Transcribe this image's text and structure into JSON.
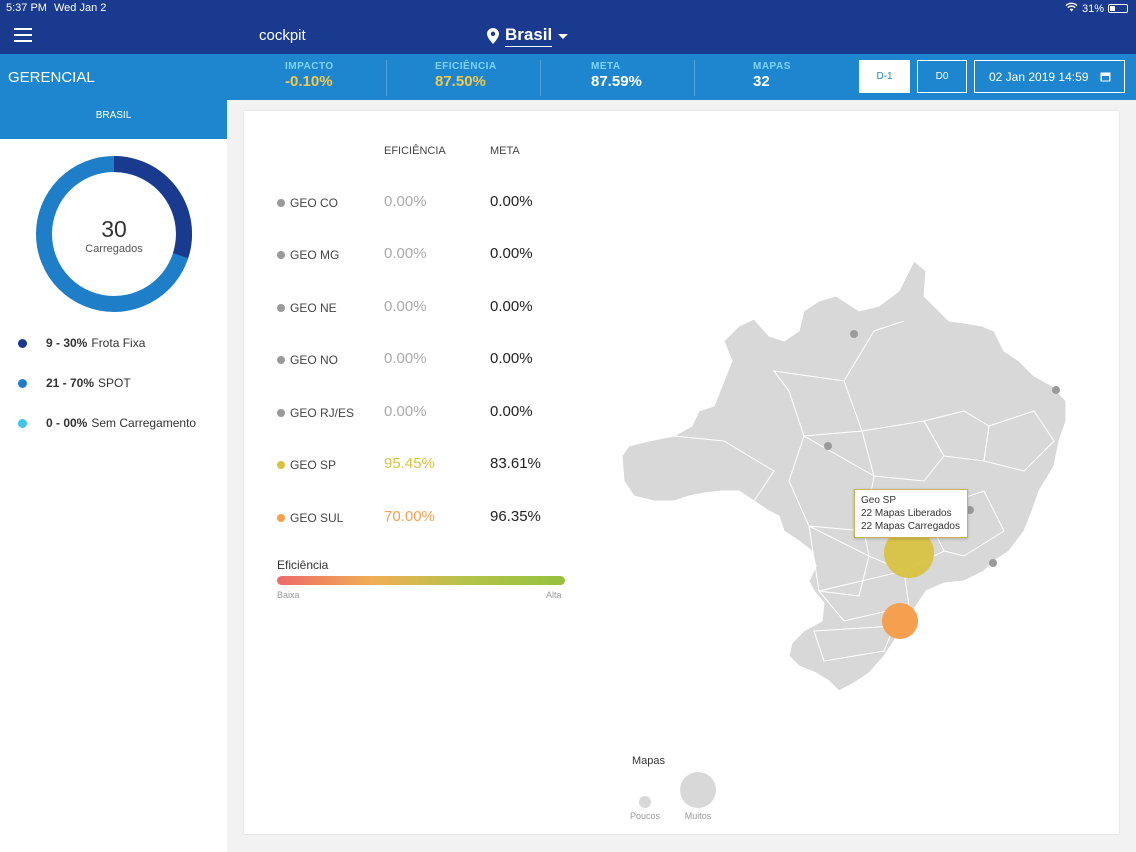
{
  "status": {
    "time": "5:37 PM",
    "date": "Wed Jan 2",
    "battery": "31%"
  },
  "nav": {
    "app_title": "cockpit",
    "region": "Brasil"
  },
  "kpibar": {
    "section": "GERENCIAL",
    "kpis": [
      {
        "label": "IMPACTO",
        "value": "-0.10%",
        "color": "#f2c94c"
      },
      {
        "label": "EFICIÊNCIA",
        "value": "87.50%",
        "color": "#f2c94c"
      },
      {
        "label": "META",
        "value": "87.59%",
        "color": "#ffffff"
      },
      {
        "label": "MAPAS",
        "value": "32",
        "color": "#ffffff"
      }
    ],
    "btn_d1": "D-1",
    "btn_d0": "D0",
    "datetime": "02 Jan 2019 14:59"
  },
  "sidebar": {
    "tab": "BRASIL",
    "donut": {
      "total": "30",
      "label": "Carregados",
      "segments": [
        9,
        21,
        0
      ]
    },
    "legend": [
      {
        "bold": "9 - 30%",
        "text": "Frota Fixa",
        "color": "#1a3a8f"
      },
      {
        "bold": "21 - 70%",
        "text": "SPOT",
        "color": "#1e7ec8"
      },
      {
        "bold": "0 - 00%",
        "text": "Sem Carregamento",
        "color": "#3ec3ea"
      }
    ]
  },
  "table": {
    "col_eff": "EFICIÊNCIA",
    "col_meta": "META",
    "rows": [
      {
        "name": "GEO CO",
        "eff": "0.00%",
        "meta": "0.00%",
        "color": "#9a9a9a",
        "eff_color": "#aaaaaa"
      },
      {
        "name": "GEO MG",
        "eff": "0.00%",
        "meta": "0.00%",
        "color": "#9a9a9a",
        "eff_color": "#aaaaaa"
      },
      {
        "name": "GEO NE",
        "eff": "0.00%",
        "meta": "0.00%",
        "color": "#9a9a9a",
        "eff_color": "#aaaaaa"
      },
      {
        "name": "GEO NO",
        "eff": "0.00%",
        "meta": "0.00%",
        "color": "#9a9a9a",
        "eff_color": "#aaaaaa"
      },
      {
        "name": "GEO RJ/ES",
        "eff": "0.00%",
        "meta": "0.00%",
        "color": "#9a9a9a",
        "eff_color": "#aaaaaa"
      },
      {
        "name": "GEO SP",
        "eff": "95.45%",
        "meta": "83.61%",
        "color": "#d8c23e",
        "eff_color": "#d8c23e"
      },
      {
        "name": "GEO SUL",
        "eff": "70.00%",
        "meta": "96.35%",
        "color": "#f5a04f",
        "eff_color": "#f5a04f"
      }
    ]
  },
  "scale": {
    "title": "Eficiência",
    "low": "Baixa",
    "high": "Alta"
  },
  "tooltip": {
    "title": "Geo SP",
    "line1": "22 Mapas Liberados",
    "line2": "22 Mapas Carregados"
  },
  "map_legend": {
    "title": "Mapas",
    "small": "Poucos",
    "large": "Muitos"
  }
}
